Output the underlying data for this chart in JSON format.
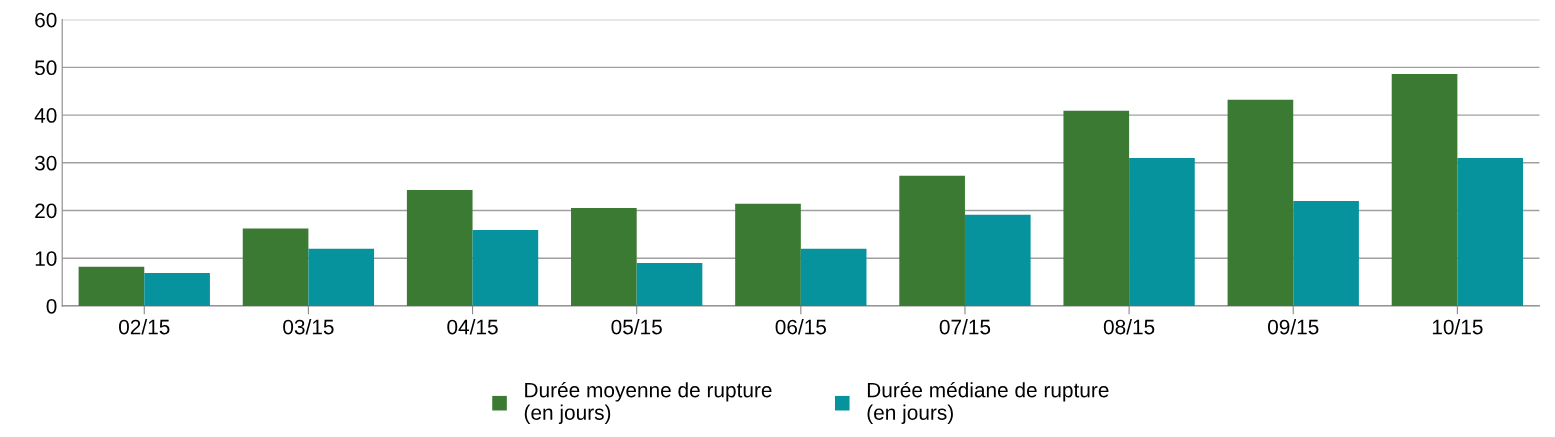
{
  "chart_data": {
    "type": "bar",
    "categories": [
      "02/15",
      "03/15",
      "04/15",
      "05/15",
      "06/15",
      "07/15",
      "08/15",
      "09/15",
      "10/15"
    ],
    "series": [
      {
        "name": "Durée moyenne de rupture\n(en jours)",
        "color": "#3a7a32",
        "values": [
          8.2,
          16.2,
          24.3,
          20.5,
          21.4,
          27.3,
          40.9,
          43.2,
          48.6
        ]
      },
      {
        "name": "Durée médiane de rupture\n(en jours)",
        "color": "#06939d",
        "values": [
          6.9,
          12,
          15.9,
          9,
          12,
          19.1,
          31,
          22,
          31
        ]
      }
    ],
    "ylim": [
      0,
      60
    ],
    "yticks": [
      0,
      10,
      20,
      30,
      40,
      50,
      60
    ],
    "grid": "y",
    "legend": "bottom"
  }
}
